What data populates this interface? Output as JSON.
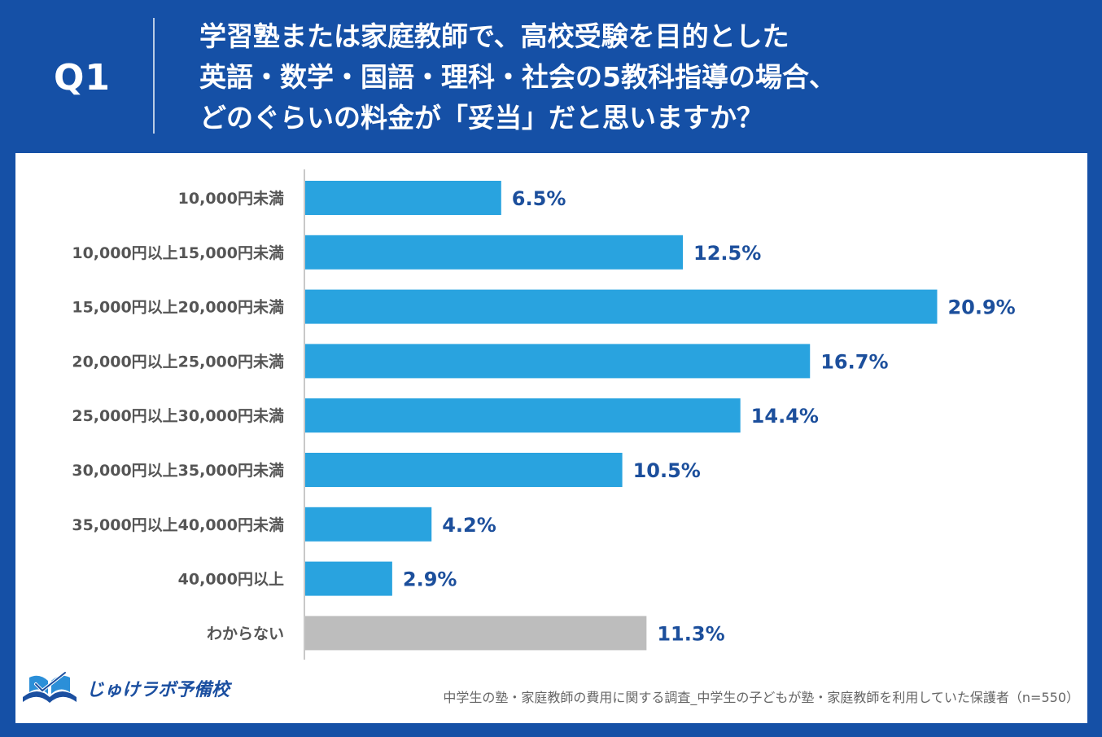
{
  "header": {
    "q_label": "Q1",
    "question_lines": [
      "学習塾または家庭教師で、高校受験を目的とした",
      "英語・数学・国語・理科・社会の5教科指導の場合、",
      "どのぐらいの料金が「妥当」だと思いますか？"
    ]
  },
  "chart_data": {
    "type": "bar",
    "orientation": "horizontal",
    "categories": [
      "10,000円未満",
      "10,000円以上15,000円未満",
      "15,000円以上20,000円未満",
      "20,000円以上25,000円未満",
      "25,000円以上30,000円未満",
      "30,000円以上35,000円未満",
      "35,000円以上40,000円未満",
      "40,000円以上",
      "わからない"
    ],
    "values": [
      6.5,
      12.5,
      20.9,
      16.7,
      14.4,
      10.5,
      4.2,
      2.9,
      11.3
    ],
    "value_labels": [
      "6.5%",
      "12.5%",
      "20.9%",
      "16.7%",
      "14.4%",
      "10.5%",
      "4.2%",
      "2.9%",
      "11.3%"
    ],
    "unit": "%",
    "xlim": [
      0,
      24
    ],
    "bar_colors": [
      "#29a3df",
      "#29a3df",
      "#29a3df",
      "#29a3df",
      "#29a3df",
      "#29a3df",
      "#29a3df",
      "#29a3df",
      "#bdbdbd"
    ],
    "label_color": "#1c4f9c",
    "category_label_color": "#555555",
    "grid": false
  },
  "footer": {
    "logo_text": "じゅけラボ予備校",
    "source": "中学生の塾・家庭教師の費用に関する調査_中学生の子どもが塾・家庭教師を利用していた保護者（n=550）"
  },
  "colors": {
    "background": "#1550a6",
    "panel": "#ffffff",
    "accent": "#29a3df",
    "other": "#bdbdbd"
  }
}
